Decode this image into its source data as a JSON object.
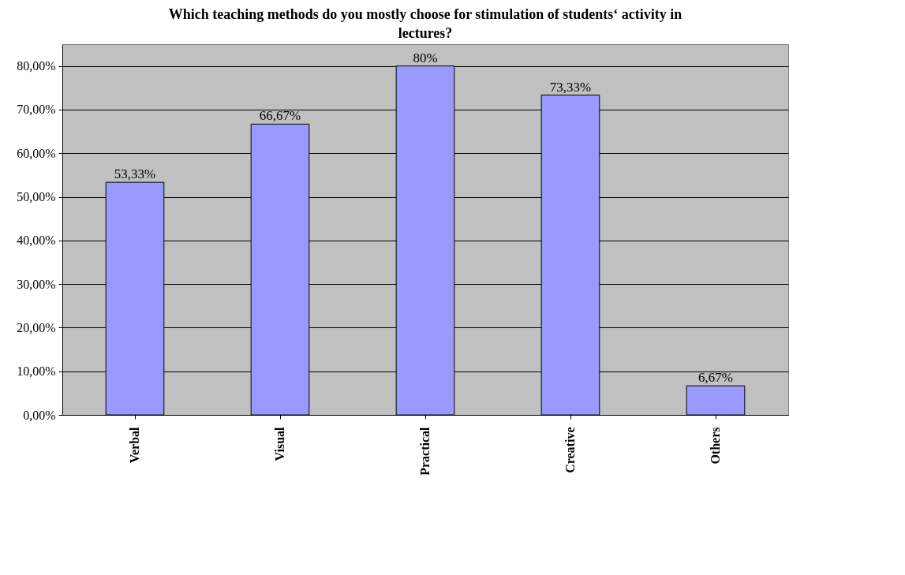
{
  "chart_data": {
    "type": "bar",
    "title": "Which teaching methods do you mostly choose for stimulation of students‘ activity in lectures?",
    "categories": [
      "Verbal",
      "Visual",
      "Practical",
      "Creative",
      "Others"
    ],
    "values": [
      53.33,
      66.67,
      80,
      73.33,
      6.67
    ],
    "value_labels": [
      "53,33%",
      "66,67%",
      "80%",
      "73,33%",
      "6,67%"
    ],
    "color": "#9999ff",
    "ylim": [
      0,
      85
    ],
    "yticks": [
      {
        "value": 0,
        "label": "0,00%"
      },
      {
        "value": 10,
        "label": "10,00%"
      },
      {
        "value": 20,
        "label": "20,00%"
      },
      {
        "value": 30,
        "label": "30,00%"
      },
      {
        "value": 40,
        "label": "40,00%"
      },
      {
        "value": 50,
        "label": "50,00%"
      },
      {
        "value": 60,
        "label": "60,00%"
      },
      {
        "value": 70,
        "label": "70,00%"
      },
      {
        "value": 80,
        "label": "80,00%"
      }
    ],
    "grid": "y"
  }
}
